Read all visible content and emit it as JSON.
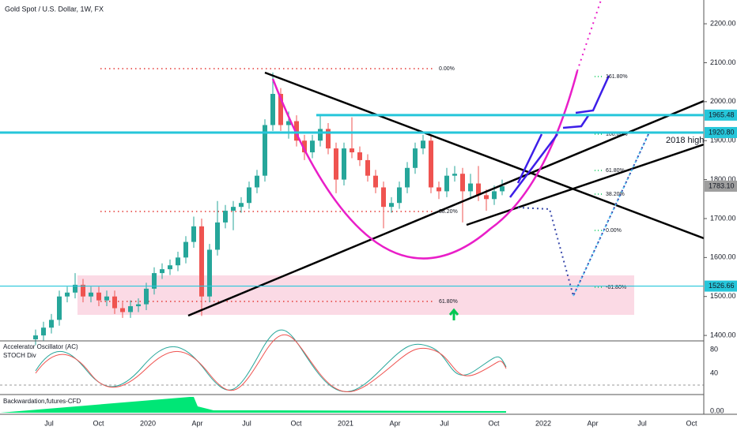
{
  "chart_data": {
    "type": "candlestick",
    "title": "Gold Spot / U.S. Dollar, 1W, FX",
    "up_color": "#26a69a",
    "down_color": "#ef5350",
    "candles": [
      [
        1390,
        1415,
        1375,
        1400
      ],
      [
        1400,
        1435,
        1385,
        1420
      ],
      [
        1420,
        1455,
        1405,
        1440
      ],
      [
        1440,
        1515,
        1425,
        1500
      ],
      [
        1500,
        1525,
        1485,
        1510
      ],
      [
        1510,
        1560,
        1495,
        1530
      ],
      [
        1530,
        1545,
        1485,
        1500
      ],
      [
        1500,
        1525,
        1485,
        1510
      ],
      [
        1510,
        1525,
        1475,
        1490
      ],
      [
        1490,
        1515,
        1475,
        1500
      ],
      [
        1500,
        1515,
        1455,
        1470
      ],
      [
        1470,
        1485,
        1445,
        1460
      ],
      [
        1460,
        1490,
        1445,
        1475
      ],
      [
        1475,
        1495,
        1460,
        1480
      ],
      [
        1480,
        1535,
        1465,
        1520
      ],
      [
        1520,
        1575,
        1505,
        1560
      ],
      [
        1560,
        1585,
        1545,
        1570
      ],
      [
        1570,
        1595,
        1555,
        1580
      ],
      [
        1580,
        1615,
        1565,
        1600
      ],
      [
        1600,
        1655,
        1585,
        1640
      ],
      [
        1640,
        1705,
        1625,
        1680
      ],
      [
        1680,
        1700,
        1450,
        1500
      ],
      [
        1500,
        1635,
        1485,
        1620
      ],
      [
        1620,
        1745,
        1605,
        1690
      ],
      [
        1690,
        1735,
        1675,
        1720
      ],
      [
        1720,
        1745,
        1670,
        1730
      ],
      [
        1730,
        1755,
        1715,
        1740
      ],
      [
        1740,
        1795,
        1725,
        1780
      ],
      [
        1780,
        1825,
        1765,
        1810
      ],
      [
        1810,
        1955,
        1795,
        1940
      ],
      [
        1940,
        2075,
        1925,
        2020
      ],
      [
        2020,
        2035,
        1925,
        1940
      ],
      [
        1940,
        1975,
        1905,
        1950
      ],
      [
        1950,
        1965,
        1885,
        1900
      ],
      [
        1900,
        1915,
        1850,
        1870
      ],
      [
        1870,
        1915,
        1855,
        1900
      ],
      [
        1900,
        1965,
        1885,
        1930
      ],
      [
        1930,
        1945,
        1865,
        1880
      ],
      [
        1880,
        1895,
        1765,
        1800
      ],
      [
        1800,
        1895,
        1785,
        1880
      ],
      [
        1880,
        1960,
        1855,
        1870
      ],
      [
        1870,
        1885,
        1835,
        1850
      ],
      [
        1850,
        1865,
        1795,
        1810
      ],
      [
        1810,
        1825,
        1765,
        1780
      ],
      [
        1780,
        1795,
        1675,
        1730
      ],
      [
        1730,
        1755,
        1715,
        1740
      ],
      [
        1740,
        1795,
        1725,
        1780
      ],
      [
        1780,
        1845,
        1765,
        1830
      ],
      [
        1830,
        1895,
        1815,
        1880
      ],
      [
        1880,
        1915,
        1865,
        1900
      ],
      [
        1900,
        1915,
        1765,
        1780
      ],
      [
        1780,
        1795,
        1750,
        1770
      ],
      [
        1770,
        1830,
        1755,
        1810
      ],
      [
        1810,
        1835,
        1795,
        1815
      ],
      [
        1815,
        1830,
        1690,
        1770
      ],
      [
        1770,
        1815,
        1755,
        1790
      ],
      [
        1790,
        1835,
        1745,
        1760
      ],
      [
        1760,
        1775,
        1720,
        1750
      ],
      [
        1750,
        1785,
        1735,
        1770
      ],
      [
        1770,
        1800,
        1760,
        1783
      ]
    ],
    "ylim": [
      1386,
      2261
    ],
    "yticks": [
      {
        "value": 1400,
        "label": "1400.00"
      },
      {
        "value": 1500,
        "label": "1500.00"
      },
      {
        "value": 1600,
        "label": "1600.00"
      },
      {
        "value": 1700,
        "label": "1700.00"
      },
      {
        "value": 1800,
        "label": "1800.00"
      },
      {
        "value": 1900,
        "label": "1900.00"
      },
      {
        "value": 2000,
        "label": "2000.00"
      },
      {
        "value": 2100,
        "label": "2100.00"
      },
      {
        "value": 2200,
        "label": "2200.00"
      }
    ],
    "xticks": [
      "Jul",
      "Oct",
      "2020",
      "Apr",
      "Jul",
      "Oct",
      "2021",
      "Apr",
      "Jul",
      "Oct",
      "2022",
      "Apr",
      "Jul",
      "Oct"
    ],
    "price_labels": [
      {
        "value": 1965.48,
        "color": "#26c6da"
      },
      {
        "value": {
          "value": 1920.8,
          "label": "1920.80"
        },
        "color": "#26c6da"
      },
      {
        "value": {
          "value": 1783.1,
          "label": "1783.10"
        },
        "color": "#9e9e9e"
      },
      {
        "value": 1526.66,
        "color": "#26c6da"
      }
    ],
    "fib_left": [
      "0.00%",
      "38.20%",
      "61.80%"
    ],
    "fib_right": [
      "161.80%",
      "100.00%",
      "61.80%",
      "38.20%",
      "0.00%",
      "-61.80%"
    ],
    "annotation": "2018 high",
    "indicators": [
      "Accelerator Oscillator (AC)",
      "STOCH Div"
    ],
    "indicator_ticks": [
      80,
      40
    ],
    "lower_indicator": "Backwardation,futures-CFD",
    "lower_tick": "0.00"
  }
}
